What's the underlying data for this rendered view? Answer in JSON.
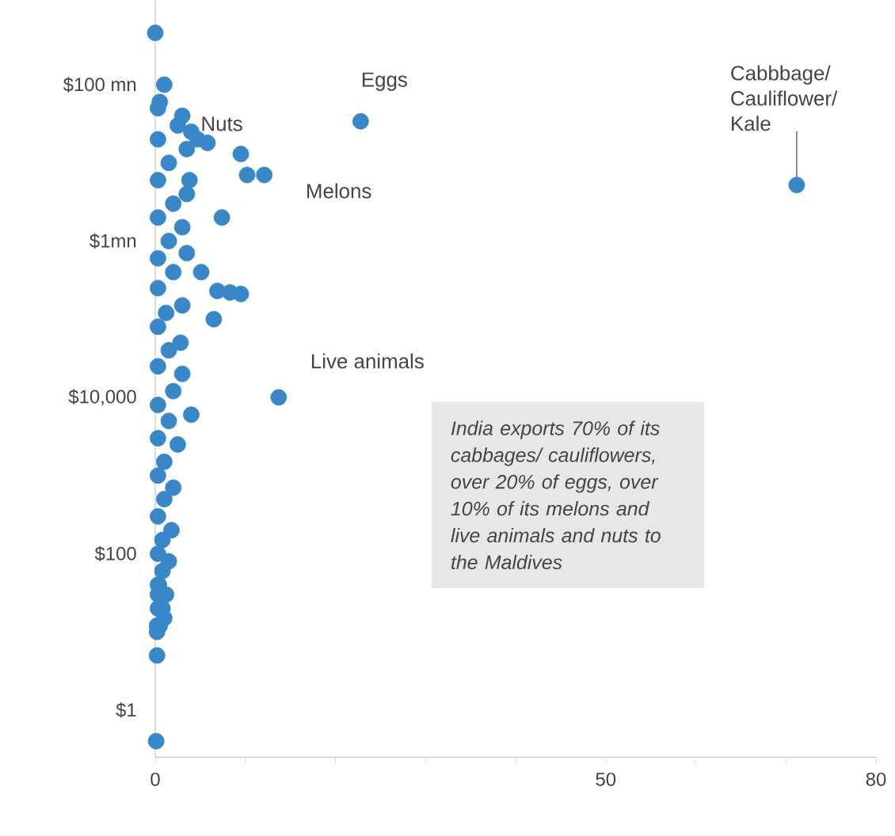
{
  "chart_data": {
    "type": "scatter",
    "x": [
      0,
      22.8,
      71.2,
      13.7,
      9.5,
      10.2,
      12.1,
      7.4,
      5.1,
      6.9,
      8.3,
      9.5,
      6.5,
      5.8,
      4.7,
      3,
      3.5,
      1,
      0.5,
      0.2,
      0.2,
      0.1,
      0.3,
      2.5,
      4,
      0.3,
      3.5,
      1.5,
      0.3,
      3.8,
      2,
      0.3,
      3,
      1.5,
      0.3,
      3.5,
      2,
      0.3,
      3,
      1.2,
      0.3,
      2.8,
      1.5,
      0.3,
      3,
      2,
      0.3,
      4,
      1.5,
      0.3,
      2.5,
      1,
      0.3,
      2,
      1,
      0.3,
      1.8,
      0.8,
      0.3,
      1.5,
      0.8,
      0.3,
      1.2,
      0.3,
      1,
      0.5,
      0.3,
      0.8,
      0.4,
      0.2
    ],
    "values": [
      460000000,
      34000000,
      5200000,
      10000,
      13000000,
      7000000,
      7000000,
      2000000,
      400000,
      230000,
      220000,
      210000,
      100000,
      18000000,
      20000000,
      40000000,
      4000000,
      100000000,
      60000000,
      12,
      5,
      0.4,
      50000000,
      30000000,
      25000000,
      20000000,
      15000000,
      10000000,
      6000000,
      6000000,
      3000000,
      2000000,
      1500000,
      1000000,
      600000,
      700000,
      400000,
      250000,
      150000,
      120000,
      80000,
      50000,
      40000,
      25000,
      20000,
      12000,
      8000,
      6000,
      5000,
      3000,
      2500,
      1500,
      1000,
      700,
      500,
      300,
      200,
      150,
      100,
      80,
      60,
      40,
      30,
      20,
      15,
      12,
      30,
      20,
      40,
      10
    ],
    "color": "#3a87c8",
    "log": "y",
    "xlim": [
      0,
      80
    ],
    "xticks": [
      0,
      {
        "value": 10,
        "label": null
      },
      {
        "value": 20,
        "label": null
      },
      {
        "value": 30,
        "label": null
      },
      {
        "value": 40,
        "label": null
      },
      50,
      {
        "value": 60,
        "label": null
      },
      {
        "value": 70,
        "label": null
      },
      80
    ],
    "ylim": [
      0.25,
      1200000000
    ],
    "yticks": [
      {
        "value": 1,
        "label": "$1"
      },
      {
        "value": 100,
        "label": "$100"
      },
      {
        "value": 10000,
        "label": "$10,000"
      },
      {
        "value": 1000000,
        "label": "$1mn"
      },
      {
        "value": 100000000,
        "label": "$100 mn"
      }
    ],
    "annotations": [
      {
        "text": "Eggs",
        "x": 22.8,
        "y": 34000000
      },
      {
        "text": "Nuts",
        "x": 9.5,
        "y": 13000000
      },
      {
        "text": "Melons",
        "x": 12.1,
        "y": 7000000
      },
      {
        "text": "Live animals",
        "x": 13.7,
        "y": 10000
      },
      {
        "text": "Cabbbage/ Cauliflower/ Kale",
        "x": 71.2,
        "y": 5200000
      },
      "India exports 70% of its cabbages/ cauliflowers, over 20% of eggs, over 10% of its melons and live animals and nuts to the Maldives"
    ]
  }
}
